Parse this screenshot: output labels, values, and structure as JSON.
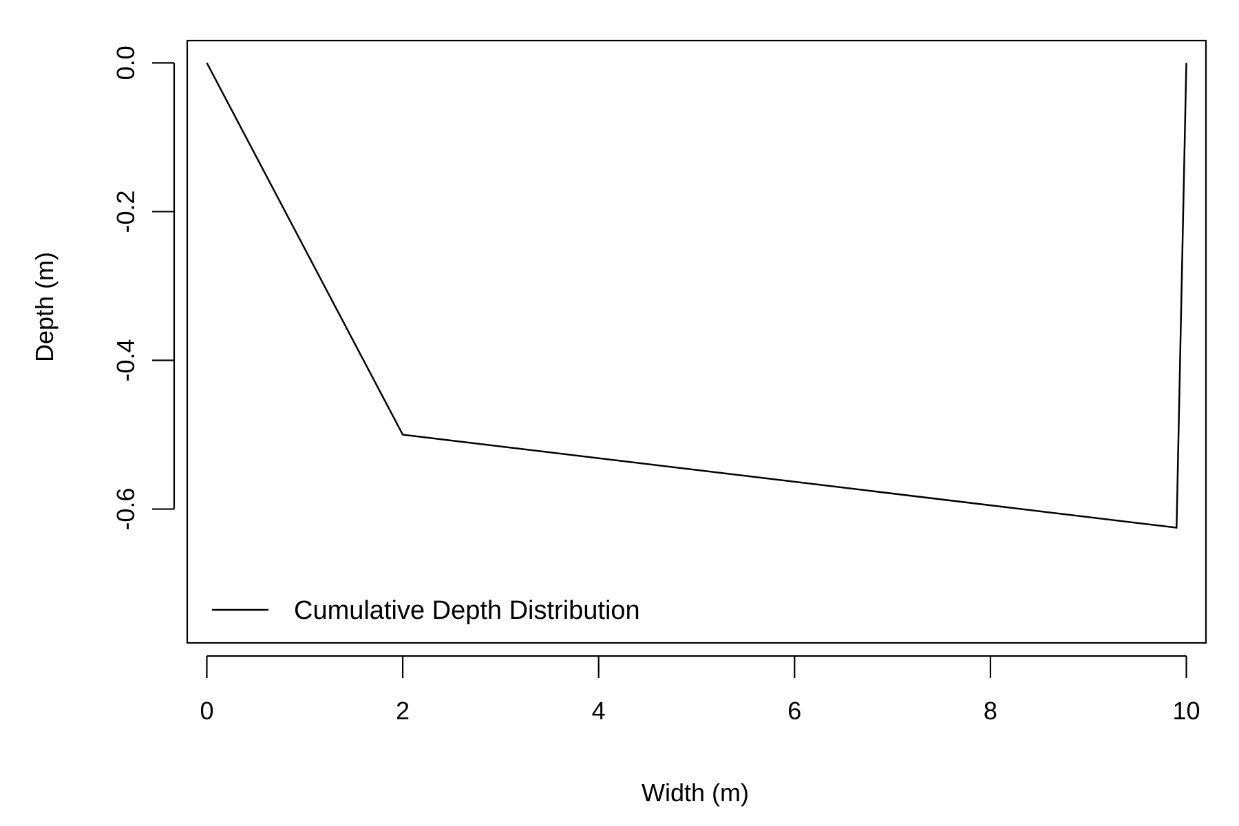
{
  "chart_data": {
    "type": "line",
    "xlabel": "Width (m)",
    "ylabel": "Depth (m)",
    "xlim": [
      -0.2,
      10.2
    ],
    "ylim": [
      -0.78,
      0.03
    ],
    "x_ticks": [
      0,
      2,
      4,
      6,
      8,
      10
    ],
    "x_tick_labels": [
      "0",
      "2",
      "4",
      "6",
      "8",
      "10"
    ],
    "y_ticks": [
      0.0,
      -0.2,
      -0.4,
      -0.6
    ],
    "y_tick_labels": [
      "0.0",
      "-0.2",
      "-0.4",
      "-0.6"
    ],
    "grid": false,
    "legend_position": "bottom-left",
    "series": [
      {
        "name": "Cumulative Depth Distribution",
        "color": "#000000",
        "x": [
          0,
          2,
          9.9,
          10
        ],
        "y": [
          0.0,
          -0.5,
          -0.625,
          0.0
        ]
      }
    ]
  }
}
